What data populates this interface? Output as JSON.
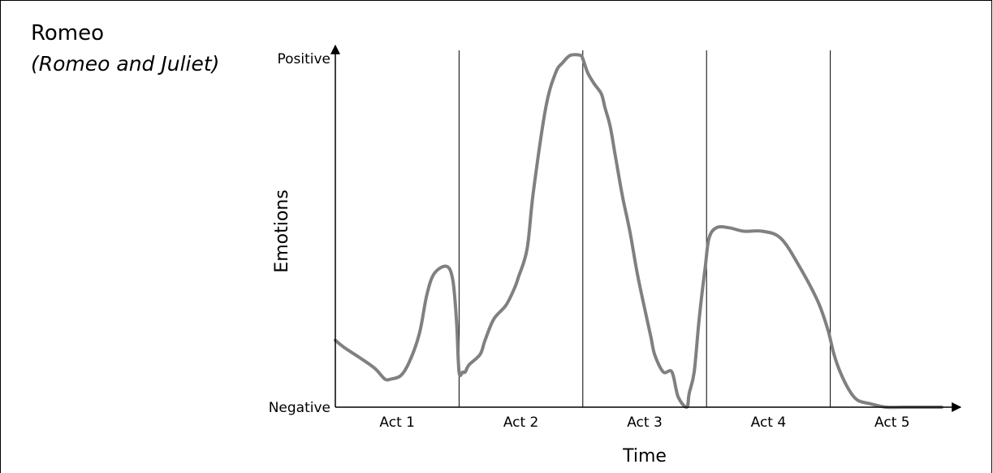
{
  "chart_data": {
    "type": "line",
    "title": "Romeo",
    "subtitle": "(Romeo and Juliet)",
    "xlabel": "Time",
    "ylabel": "Emotions",
    "y_tick_labels": [
      "Negative",
      "Positive"
    ],
    "xlim": [
      0,
      5
    ],
    "ylim": [
      0,
      1
    ],
    "categories": [
      "Act 1",
      "Act 2",
      "Act 3",
      "Act 4",
      "Act 5"
    ],
    "act_boundaries": [
      1,
      2,
      3,
      4
    ],
    "grid": false,
    "legend": "none",
    "line_color": "#808080",
    "series": [
      {
        "x": [
          0.0,
          0.07,
          0.2,
          0.32,
          0.4,
          0.45,
          0.53,
          0.6,
          0.68,
          0.74,
          0.8,
          0.9,
          0.95,
          0.98,
          1.0,
          1.03,
          1.05,
          1.08,
          1.17,
          1.21,
          1.28,
          1.38,
          1.45,
          1.48,
          1.55,
          1.6,
          1.7,
          1.78,
          1.84,
          1.9,
          1.98,
          2.0,
          2.04,
          2.09,
          2.15,
          2.18,
          2.22,
          2.26,
          2.32,
          2.38,
          2.44,
          2.5,
          2.55,
          2.58,
          2.65,
          2.72,
          2.77,
          2.84,
          2.86,
          2.9,
          2.94,
          2.99,
          3.02,
          3.08,
          3.18,
          3.3,
          3.45,
          3.6,
          3.75,
          3.9,
          3.98,
          4.03,
          4.08,
          4.15,
          4.22,
          4.32,
          4.45,
          4.6,
          4.75,
          4.9
        ],
        "values": [
          0.19,
          0.17,
          0.14,
          0.11,
          0.08,
          0.08,
          0.09,
          0.13,
          0.21,
          0.32,
          0.38,
          0.4,
          0.36,
          0.24,
          0.1,
          0.1,
          0.1,
          0.12,
          0.15,
          0.19,
          0.25,
          0.29,
          0.34,
          0.37,
          0.45,
          0.61,
          0.85,
          0.95,
          0.98,
          1.0,
          1.0,
          0.99,
          0.95,
          0.92,
          0.89,
          0.85,
          0.8,
          0.72,
          0.6,
          0.5,
          0.38,
          0.28,
          0.2,
          0.15,
          0.1,
          0.1,
          0.03,
          0.0,
          0.04,
          0.1,
          0.25,
          0.4,
          0.48,
          0.51,
          0.51,
          0.5,
          0.5,
          0.48,
          0.4,
          0.3,
          0.22,
          0.15,
          0.1,
          0.05,
          0.02,
          0.01,
          0.0,
          0.0,
          0.0,
          0.0
        ]
      }
    ]
  }
}
